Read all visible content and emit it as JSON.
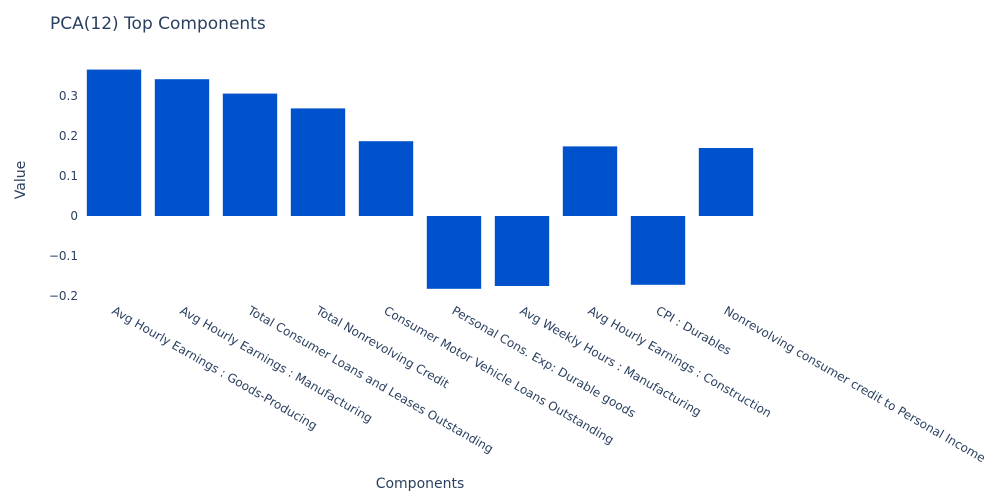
{
  "chart_data": {
    "type": "bar",
    "title": "PCA(12) Top Components",
    "xlabel": "Components",
    "ylabel": "Value",
    "categories": [
      "Avg Hourly Earnings : Goods-Producing",
      "Avg Hourly Earnings : Manufacturing",
      "Total Consumer Loans and Leases Outstanding",
      "Total Nonrevolving Credit",
      "Consumer Motor Vehicle Loans Outstanding",
      "Personal Cons. Exp: Durable goods",
      "Avg Weekly Hours : Manufacturing",
      "Avg Hourly Earnings : Construction",
      "CPI : Durables",
      "Nonrevolving consumer credit to Personal Income"
    ],
    "values": [
      0.366,
      0.342,
      0.306,
      0.269,
      0.187,
      -0.182,
      -0.175,
      0.174,
      -0.172,
      0.17
    ],
    "ylim": [
      -0.21,
      0.39
    ],
    "yticks": [
      {
        "value": 0.3,
        "label": "0.3"
      },
      {
        "value": 0.2,
        "label": "0.2"
      },
      {
        "value": 0.1,
        "label": "0.1"
      },
      {
        "value": 0,
        "label": "0"
      },
      {
        "value": -0.1,
        "label": "−0.1"
      },
      {
        "value": -0.2,
        "label": "−0.2"
      }
    ],
    "bar_color": "#0051cc",
    "grid": false,
    "legend": "none"
  }
}
